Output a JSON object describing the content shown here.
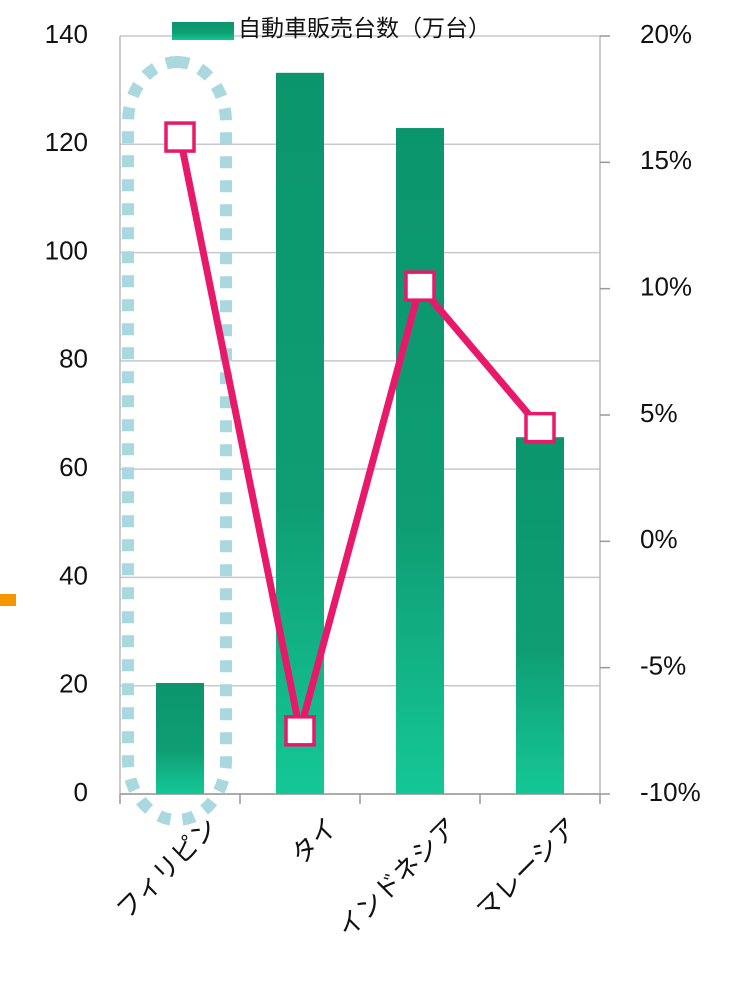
{
  "chart_data": {
    "type": "bar",
    "categories": [
      "フィリピン",
      "タイ",
      "インドネシア",
      "マレーシア"
    ],
    "series": [
      {
        "name": "自動車販売台数（万台）",
        "type": "bar",
        "color": "#0f9e74",
        "values": [
          20.5,
          133.2,
          123,
          65.9
        ]
      },
      {
        "type": "line",
        "axis": "y2",
        "color": "#e8196a",
        "values": [
          16,
          -7.5,
          10.1,
          4.5
        ]
      }
    ],
    "ylim": [
      0,
      140
    ],
    "yticks": [
      0,
      20,
      40,
      60,
      80,
      100,
      120,
      140
    ],
    "y2lim": [
      -10,
      20
    ],
    "y2ticks": [
      {
        "value": -10,
        "label": "-10%"
      },
      {
        "value": -5,
        "label": "-5%"
      },
      {
        "value": 0,
        "label": "0%"
      },
      {
        "value": 5,
        "label": "5%"
      },
      {
        "value": 10,
        "label": "10%"
      },
      {
        "value": 15,
        "label": "15%"
      },
      {
        "value": 20,
        "label": "20%"
      }
    ],
    "grid": true,
    "legend": "top"
  }
}
